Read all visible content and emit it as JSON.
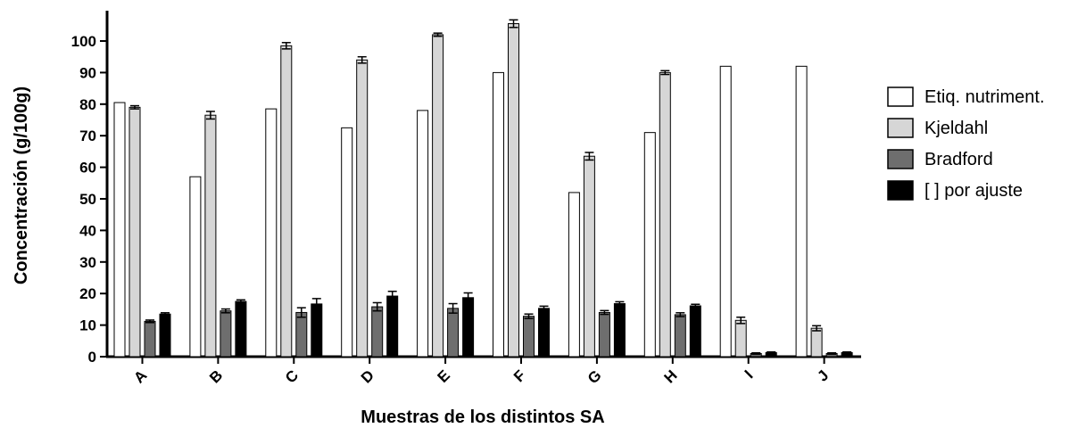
{
  "chart_data": {
    "type": "bar",
    "title": "",
    "xlabel": "Muestras de los distintos SA",
    "ylabel": "Concentración (g/100g)",
    "ylim": [
      0,
      110
    ],
    "yticks": [
      0,
      10,
      20,
      30,
      40,
      50,
      60,
      70,
      80,
      90,
      100
    ],
    "grid": false,
    "legend_position": "right",
    "categories": [
      "A",
      "B",
      "C",
      "D",
      "E",
      "F",
      "G",
      "H",
      "I",
      "J"
    ],
    "series": [
      {
        "name": "Etiq. nutriment.",
        "color": "#ffffff",
        "values": [
          80.5,
          57,
          78.5,
          72.5,
          78,
          90,
          52,
          71,
          92,
          92
        ],
        "errors": [
          0,
          0,
          0,
          0,
          0,
          0,
          0,
          0,
          0,
          0
        ]
      },
      {
        "name": "Kjeldahl",
        "color": "#d6d6d6",
        "values": [
          79,
          76.5,
          98.5,
          94,
          102,
          105.5,
          63.5,
          90,
          11.5,
          9
        ],
        "errors": [
          0.5,
          1.2,
          1.0,
          1.0,
          0.5,
          1.2,
          1.2,
          0.6,
          1.0,
          0.8
        ]
      },
      {
        "name": "Bradford",
        "color": "#6e6e6e",
        "values": [
          11.2,
          14.5,
          14,
          15.8,
          15.3,
          12.8,
          14,
          13.3,
          1,
          1
        ],
        "errors": [
          0.4,
          0.6,
          1.5,
          1.3,
          1.5,
          0.7,
          0.6,
          0.6,
          0.2,
          0.2
        ]
      },
      {
        "name": "[ ] por ajuste",
        "color": "#000000",
        "values": [
          13.5,
          17.5,
          16.7,
          19.2,
          18.7,
          15.3,
          16.8,
          16.1,
          1.3,
          1.3
        ],
        "errors": [
          0.4,
          0.5,
          1.7,
          1.5,
          1.5,
          0.7,
          0.6,
          0.5,
          0.2,
          0.2
        ]
      }
    ]
  }
}
